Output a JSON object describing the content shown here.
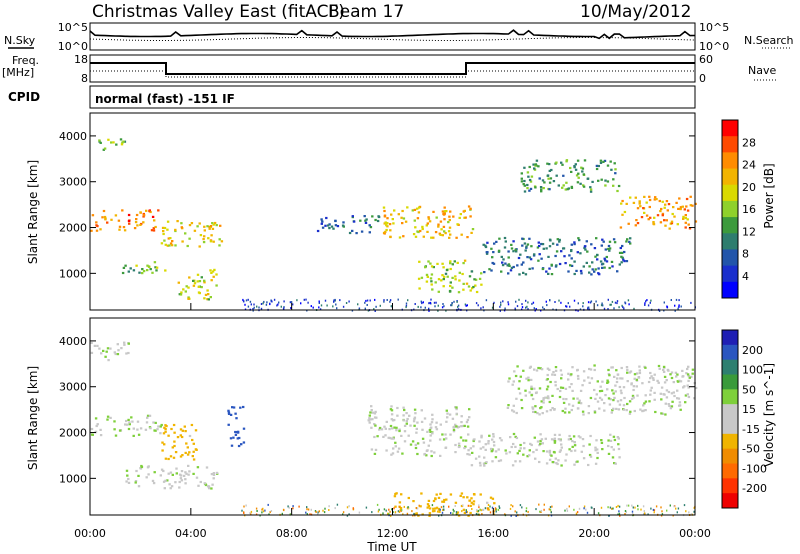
{
  "header": {
    "title": "Christmas Valley East (fitACF)",
    "beam": "Beam 17",
    "date": "10/May/2012"
  },
  "top_panels": {
    "nsky_label": "N.Sky",
    "nsky_ticks": [
      "10^5",
      "10^0"
    ],
    "nsearch_label": "N.Search",
    "nsearch_ticks": [
      "10^5",
      "10^0"
    ],
    "freq_label_1": "Freq.",
    "freq_label_2": "[MHz]",
    "freq_ticks": [
      "18",
      "8"
    ],
    "nave_label": "Nave",
    "nave_ticks": [
      "60",
      "0"
    ],
    "cpid_label": "CPID",
    "cpid_text": "normal (fast) -151 IF"
  },
  "xaxis": {
    "label": "Time UT",
    "ticks": [
      "00:00",
      "04:00",
      "08:00",
      "12:00",
      "16:00",
      "20:00",
      "00:00"
    ]
  },
  "power_colorbar": {
    "label": "Power [dB]",
    "ticks": [
      "28",
      "24",
      "20",
      "16",
      "12",
      "8",
      "4"
    ],
    "colors": [
      "#ff0000",
      "#ff4a00",
      "#ff8c00",
      "#f2b400",
      "#d9d900",
      "#8fd12c",
      "#3c9a3c",
      "#2e7d6e",
      "#2255aa",
      "#1a2fcc",
      "#0000ff"
    ]
  },
  "velocity_colorbar": {
    "label": "Velocity [m s^-1]",
    "ticks": [
      "200",
      "100",
      "50",
      "15",
      "-15",
      "-50",
      "-100",
      "-200"
    ],
    "colors": [
      "#1f1fb4",
      "#2a56c0",
      "#2e7f70",
      "#3a9a3a",
      "#7ecf3a",
      "#c8c8c8",
      "#c8c8c8",
      "#f0b400",
      "#f08c00",
      "#ff6a00",
      "#ff3300",
      "#ee0000"
    ]
  },
  "chart_data": [
    {
      "type": "heatmap",
      "title": "",
      "ylabel": "Slant Range [km]",
      "xlabel": "",
      "ylim": [
        200,
        4500
      ],
      "yticks": [
        "1000",
        "2000",
        "3000",
        "4000"
      ],
      "xlim_hours": [
        0,
        24
      ],
      "colorbar_label": "Power [dB]",
      "scatter_regions": [
        {
          "t0": 0.0,
          "t1": 2.7,
          "r0": 1950,
          "r1": 2400,
          "power": 26
        },
        {
          "t0": 0.0,
          "t1": 1.4,
          "r0": 3700,
          "r1": 3950,
          "power": 14
        },
        {
          "t0": 2.8,
          "t1": 5.2,
          "r0": 1600,
          "r1": 2200,
          "power": 20
        },
        {
          "t0": 1.2,
          "t1": 3.0,
          "r0": 1000,
          "r1": 1300,
          "power": 14
        },
        {
          "t0": 3.4,
          "t1": 5.0,
          "r0": 450,
          "r1": 1100,
          "power": 18
        },
        {
          "t0": 9.0,
          "t1": 11.5,
          "r0": 1900,
          "r1": 2300,
          "power": 8
        },
        {
          "t0": 11.5,
          "t1": 15.2,
          "r0": 1800,
          "r1": 2500,
          "power": 22
        },
        {
          "t0": 13.0,
          "t1": 15.5,
          "r0": 600,
          "r1": 1300,
          "power": 16
        },
        {
          "t0": 15.5,
          "t1": 21.5,
          "r0": 1000,
          "r1": 1800,
          "power": 8
        },
        {
          "t0": 17.0,
          "t1": 21.0,
          "r0": 2800,
          "r1": 3500,
          "power": 12
        },
        {
          "t0": 21.0,
          "t1": 24.0,
          "r0": 2000,
          "r1": 2700,
          "power": 24
        }
      ]
    },
    {
      "type": "heatmap",
      "title": "",
      "ylabel": "Slant Range [km]",
      "xlabel": "Time UT",
      "ylim": [
        200,
        4500
      ],
      "yticks": [
        "1000",
        "2000",
        "3000",
        "4000"
      ],
      "xlim_hours": [
        0,
        24
      ],
      "colorbar_label": "Velocity [m s^-1]",
      "scatter_regions": [
        {
          "t0": 0.0,
          "t1": 2.8,
          "r0": 1950,
          "r1": 2400,
          "velocity": 0
        },
        {
          "t0": 0.0,
          "t1": 1.5,
          "r0": 3600,
          "r1": 4000,
          "velocity": 0
        },
        {
          "t0": 2.8,
          "t1": 4.2,
          "r0": 1400,
          "r1": 2200,
          "velocity": -50
        },
        {
          "t0": 5.4,
          "t1": 6.1,
          "r0": 1700,
          "r1": 2600,
          "velocity": 150
        },
        {
          "t0": 1.4,
          "t1": 5.0,
          "r0": 800,
          "r1": 1300,
          "velocity": 0
        },
        {
          "t0": 11.0,
          "t1": 15.0,
          "r0": 1500,
          "r1": 2600,
          "velocity": 0
        },
        {
          "t0": 15.0,
          "t1": 21.0,
          "r0": 1300,
          "r1": 2000,
          "velocity": 0
        },
        {
          "t0": 16.5,
          "t1": 24.0,
          "r0": 2400,
          "r1": 3500,
          "velocity": 0
        },
        {
          "t0": 12.0,
          "t1": 16.0,
          "r0": 200,
          "r1": 700,
          "velocity": -50
        }
      ]
    }
  ]
}
